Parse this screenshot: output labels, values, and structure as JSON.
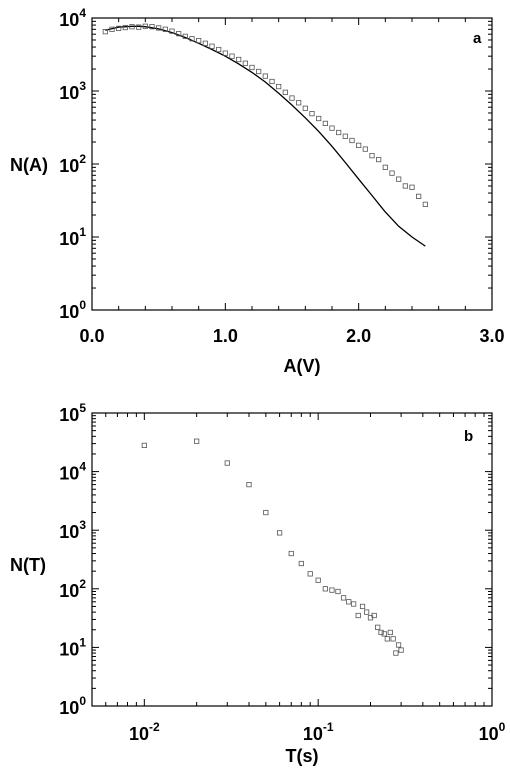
{
  "chart_data": [
    {
      "type": "scatter",
      "panel_label": "a",
      "xlabel": "A(V)",
      "ylabel": "N(A)",
      "xscale": "linear",
      "yscale": "log",
      "xlim": [
        0.0,
        3.0
      ],
      "ylim": [
        1,
        10000
      ],
      "x_ticks": [
        "0.0",
        "1.0",
        "2.0",
        "3.0"
      ],
      "y_ticks": [
        {
          "base": "10",
          "exp": "0"
        },
        {
          "base": "10",
          "exp": "1"
        },
        {
          "base": "10",
          "exp": "2"
        },
        {
          "base": "10",
          "exp": "3"
        },
        {
          "base": "10",
          "exp": "4"
        }
      ],
      "series": [
        {
          "kind": "points",
          "marker": "open-square",
          "x": [
            0.1,
            0.15,
            0.2,
            0.25,
            0.3,
            0.35,
            0.4,
            0.45,
            0.5,
            0.55,
            0.6,
            0.65,
            0.7,
            0.75,
            0.8,
            0.85,
            0.9,
            0.95,
            1.0,
            1.05,
            1.1,
            1.15,
            1.2,
            1.25,
            1.3,
            1.35,
            1.4,
            1.45,
            1.5,
            1.55,
            1.6,
            1.65,
            1.7,
            1.75,
            1.8,
            1.85,
            1.9,
            1.95,
            2.0,
            2.05,
            2.1,
            2.15,
            2.2,
            2.25,
            2.3,
            2.35,
            2.4,
            2.45,
            2.5
          ],
          "y": [
            6500,
            7000,
            7200,
            7400,
            7600,
            7500,
            7700,
            7600,
            7300,
            7000,
            6600,
            6100,
            5600,
            5200,
            4900,
            4500,
            4100,
            3700,
            3300,
            3000,
            2700,
            2400,
            2100,
            1850,
            1600,
            1350,
            1150,
            960,
            800,
            690,
            580,
            490,
            420,
            360,
            310,
            270,
            240,
            210,
            180,
            160,
            130,
            115,
            90,
            75,
            62,
            50,
            48,
            36,
            28
          ]
        },
        {
          "kind": "fit-line",
          "x": [
            0.1,
            0.2,
            0.3,
            0.35,
            0.4,
            0.5,
            0.6,
            0.7,
            0.8,
            0.9,
            1.0,
            1.1,
            1.2,
            1.3,
            1.4,
            1.5,
            1.6,
            1.7,
            1.8,
            1.9,
            2.0,
            2.1,
            2.2,
            2.3,
            2.4,
            2.5
          ],
          "y": [
            6800,
            7500,
            7700,
            7700,
            7600,
            7100,
            6300,
            5400,
            4500,
            3700,
            3000,
            2350,
            1800,
            1330,
            930,
            640,
            430,
            280,
            175,
            105,
            62,
            37,
            22,
            14,
            10,
            7.5
          ]
        }
      ]
    },
    {
      "type": "scatter",
      "panel_label": "b",
      "xlabel": "T(s)",
      "ylabel": "N(T)",
      "xscale": "log",
      "yscale": "log",
      "xlim": [
        0.005,
        1
      ],
      "ylim": [
        1,
        100000
      ],
      "x_ticks": [
        {
          "base": "10",
          "exp": "-2"
        },
        {
          "base": "10",
          "exp": "-1"
        },
        {
          "base": "10",
          "exp": "0"
        }
      ],
      "y_ticks": [
        {
          "base": "10",
          "exp": "0"
        },
        {
          "base": "10",
          "exp": "1"
        },
        {
          "base": "10",
          "exp": "2"
        },
        {
          "base": "10",
          "exp": "3"
        },
        {
          "base": "10",
          "exp": "4"
        },
        {
          "base": "10",
          "exp": "5"
        }
      ],
      "series": [
        {
          "kind": "points",
          "marker": "open-square",
          "x": [
            0.01,
            0.02,
            0.03,
            0.04,
            0.05,
            0.06,
            0.07,
            0.08,
            0.09,
            0.1,
            0.11,
            0.12,
            0.13,
            0.14,
            0.15,
            0.16,
            0.17,
            0.18,
            0.19,
            0.2,
            0.21,
            0.22,
            0.23,
            0.24,
            0.25,
            0.26,
            0.27,
            0.28,
            0.29,
            0.3
          ],
          "y": [
            28000,
            33000,
            14000,
            6000,
            2000,
            900,
            400,
            270,
            180,
            140,
            100,
            95,
            90,
            70,
            60,
            55,
            35,
            50,
            40,
            32,
            35,
            22,
            18,
            17,
            14,
            18,
            14,
            8,
            11,
            9
          ]
        }
      ]
    }
  ]
}
